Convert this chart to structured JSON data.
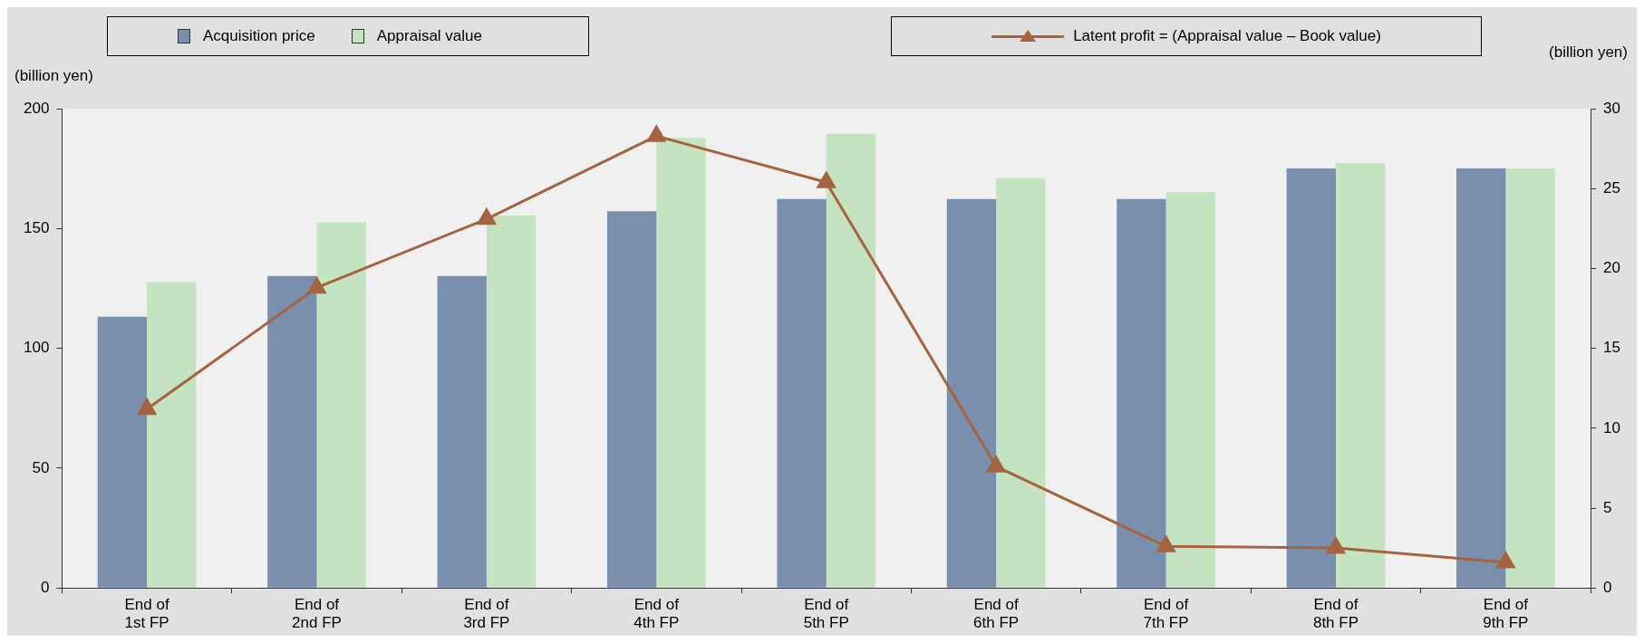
{
  "chart_data": {
    "type": "bar",
    "categories": [
      "End of\n1st FP",
      "End of\n2nd FP",
      "End of\n3rd FP",
      "End of\n4th FP",
      "End of\n5th FP",
      "End of\n6th FP",
      "End of\n7th FP",
      "End of\n8th FP",
      "End of\n9th FP"
    ],
    "series": [
      {
        "name": "Acquisition price",
        "color": "#7a8fae",
        "values": [
          113.2,
          130.2,
          130.2,
          157.3,
          162.4,
          162.4,
          162.4,
          175.1,
          175.1
        ]
      },
      {
        "name": "Appraisal value",
        "color": "#c4e3c0",
        "values": [
          127.7,
          152.6,
          155.5,
          187.9,
          189.6,
          171.1,
          165.3,
          177.3,
          175.1
        ]
      },
      {
        "name": "Latent profit = (Appraisal value – Book value)",
        "type": "line",
        "axis": "y2",
        "color": "#a5633f",
        "marker": "triangle",
        "values": [
          11.2,
          18.8,
          23.1,
          28.3,
          25.4,
          7.6,
          2.6,
          2.5,
          1.6
        ]
      }
    ],
    "ylabel": "(billion yen)",
    "y2label": "(billion yen)",
    "ylim": [
      0,
      200
    ],
    "yticks": [
      0,
      50,
      100,
      150,
      200
    ],
    "y2lim": [
      0,
      30
    ],
    "y2ticks": [
      0,
      5,
      10,
      15,
      20,
      25,
      30
    ],
    "grid": false,
    "legend": "top"
  }
}
